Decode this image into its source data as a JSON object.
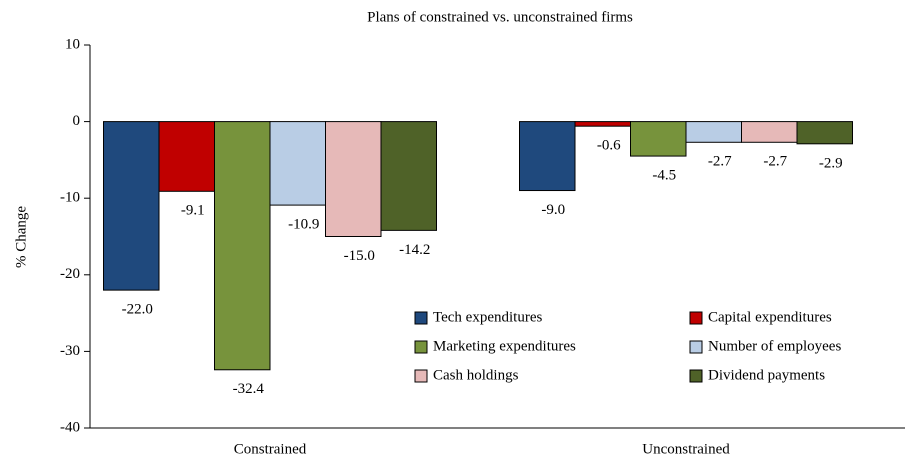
{
  "chart_data": {
    "type": "bar",
    "title": "Plans of constrained vs. unconstrained firms",
    "y_label": "% Change",
    "categories": [
      "Constrained",
      "Unconstrained"
    ],
    "series": [
      {
        "name": "Tech expenditures",
        "color": "#1f497d",
        "values": [
          -22,
          -9
        ],
        "value_labels": [
          "-22.0",
          "-9.0"
        ]
      },
      {
        "name": "Capital expenditures",
        "color": "#c00000",
        "values": [
          -9.1,
          -0.6
        ]
      },
      {
        "name": "Marketing expenditures",
        "color": "#77933c",
        "values": [
          -32.4,
          -4.5
        ]
      },
      {
        "name": "Number of employees",
        "color": "#b9cde5",
        "values": [
          -10.9,
          -2.7
        ]
      },
      {
        "name": "Cash holdings",
        "color": "#e6b9b8",
        "values": [
          -15,
          -2.7
        ],
        "value_labels": [
          "-15.0",
          "-2.7"
        ]
      },
      {
        "name": "Dividend payments",
        "color": "#4f6228",
        "values": [
          -14.2,
          -2.9
        ]
      }
    ],
    "ylim": [
      -40,
      10
    ],
    "yticks": [
      -40,
      -30,
      -20,
      -10,
      0,
      10
    ],
    "legend": "lower right"
  }
}
